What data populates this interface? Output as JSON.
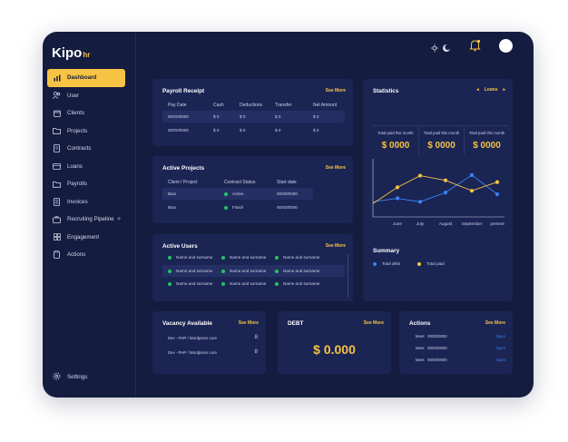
{
  "brand": {
    "name": "Kipo",
    "suffix": "hr"
  },
  "sidebar": {
    "items": [
      {
        "label": "Dashboard",
        "icon": "bar-chart-icon",
        "active": true
      },
      {
        "label": "User",
        "icon": "users-icon"
      },
      {
        "label": "Clients",
        "icon": "calendar-icon"
      },
      {
        "label": "Projects",
        "icon": "folder-icon"
      },
      {
        "label": "Contracts",
        "icon": "document-icon"
      },
      {
        "label": "Loans",
        "icon": "wallet-icon"
      },
      {
        "label": "Payrolls",
        "icon": "folder-icon"
      },
      {
        "label": "Invoices",
        "icon": "invoice-icon"
      },
      {
        "label": "Recruiting Pipeline",
        "icon": "briefcase-icon"
      },
      {
        "label": "Engagement",
        "icon": "grid-icon"
      },
      {
        "label": "Actions",
        "icon": "clipboard-icon"
      }
    ],
    "settings_label": "Settings"
  },
  "payroll": {
    "title": "Payroll Receipt",
    "see_more": "See More",
    "headers": [
      "Pay Date",
      "Cash",
      "Deductions",
      "Transfer",
      "Net Amount"
    ],
    "rows": [
      [
        "00/00/0000",
        "$ 0",
        "$ 0",
        "$ 0",
        "$ 0"
      ],
      [
        "00/00/0000",
        "$ 0",
        "$ 0",
        "$ 0",
        "$ 0"
      ]
    ]
  },
  "projects": {
    "title": "Active Projects",
    "see_more": "See More",
    "headers": [
      "Client / Project",
      "Contract Status",
      "Start date"
    ],
    "rows": [
      {
        "client": "Bias",
        "status": "Active",
        "date": "00/00/0000"
      },
      {
        "client": "Bias",
        "status": "Finish",
        "date": "00/00/0000"
      }
    ]
  },
  "active_users": {
    "title": "Active Users",
    "see_more": "See More",
    "name": "Name and surname"
  },
  "statistics": {
    "title": "Statistics",
    "selector": "Loans",
    "boxes": [
      {
        "label": "Total paid this month",
        "value": "$ 0000"
      },
      {
        "label": "Total paid this month",
        "value": "$ 0000"
      },
      {
        "label": "Total paid this month",
        "value": "$ 0000"
      }
    ],
    "summary_title": "Summary",
    "legend": [
      {
        "label": "Total debt",
        "color": "#3b82f6"
      },
      {
        "label": "Total paid",
        "color": "#f6c343"
      }
    ]
  },
  "chart_data": {
    "type": "line",
    "x": [
      "June",
      "July",
      "August",
      "September",
      "present"
    ],
    "ylim": [
      0,
      10
    ],
    "grid": false,
    "series": [
      {
        "name": "Total debt",
        "color": "#3b82f6",
        "values": [
          3.2,
          2.6,
          4.2,
          7.2,
          3.9
        ]
      },
      {
        "name": "Total paid",
        "color": "#f6c343",
        "values": [
          5.1,
          7.1,
          6.3,
          4.5,
          6.0
        ]
      }
    ]
  },
  "vacancy": {
    "title": "Vacancy Available",
    "see_more": "See More",
    "rows": [
      {
        "label": "Dev - PHP / Wordpress core",
        "count": "8"
      },
      {
        "label": "Dev - PHP / Wordpress core",
        "count": "8"
      }
    ]
  },
  "debt": {
    "title": "DEBT",
    "see_more": "See More",
    "value": "$ 0.000"
  },
  "actions": {
    "title": "Actions",
    "see_more": "See More",
    "rows": [
      {
        "label": "Meet",
        "date": "00/00/0000",
        "status": "Open"
      },
      {
        "label": "Meet",
        "date": "00/00/0000",
        "status": "Open"
      },
      {
        "label": "Meet",
        "date": "00/00/0000",
        "status": "Open"
      }
    ]
  }
}
